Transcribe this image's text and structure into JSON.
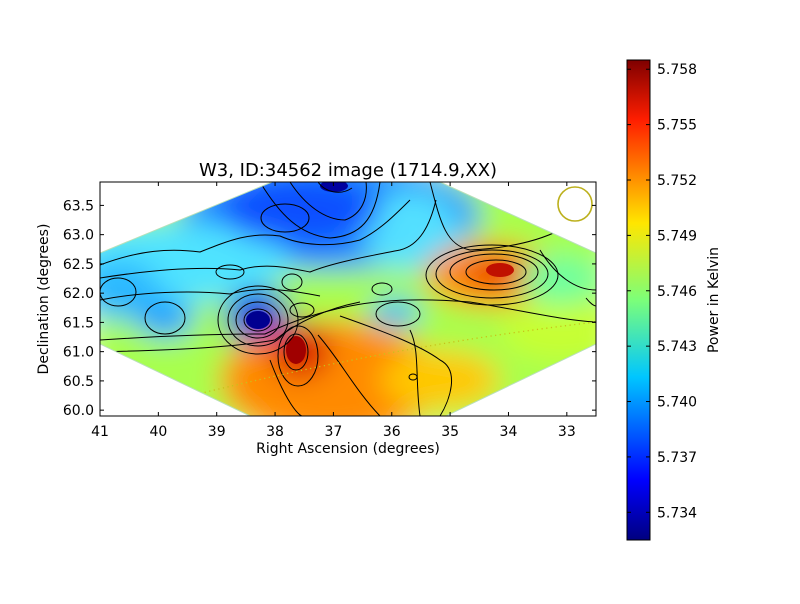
{
  "chart_data": [
    {
      "type": "heatmap",
      "title": "W3, ID:34562 image (1714.9,XX)",
      "xlabel": "Right Ascension (degrees)",
      "ylabel": "Declination (degrees)",
      "x_reversed": true,
      "xlim": [
        41.0,
        32.5
      ],
      "ylim": [
        59.9,
        63.9
      ],
      "x_ticks": [
        "41",
        "40",
        "39",
        "38",
        "37",
        "36",
        "35",
        "34",
        "33"
      ],
      "y_ticks": [
        "60.0",
        "60.5",
        "61.0",
        "61.5",
        "62.0",
        "62.5",
        "63.0",
        "63.5"
      ],
      "colormap": "jet",
      "contours": true,
      "features": [
        {
          "kind": "minimum",
          "ra": 38.3,
          "dec": 61.45,
          "value": 5.733
        },
        {
          "kind": "minimum",
          "ra": 37.9,
          "dec": 63.3,
          "value": 5.737
        },
        {
          "kind": "minimum",
          "ra": 37.0,
          "dec": 63.8,
          "value": 5.735
        },
        {
          "kind": "minimum",
          "ra": 39.9,
          "dec": 61.5,
          "value": 5.74
        },
        {
          "kind": "minimum",
          "ra": 35.9,
          "dec": 61.6,
          "value": 5.741
        },
        {
          "kind": "maximum",
          "ra": 37.7,
          "dec": 60.95,
          "value": 5.757
        },
        {
          "kind": "maximum",
          "ra": 34.2,
          "dec": 62.35,
          "value": 5.755
        }
      ]
    },
    {
      "type": "colorbar",
      "label": "Power in Kelvin",
      "ticks": [
        "5.734",
        "5.737",
        "5.740",
        "5.743",
        "5.746",
        "5.749",
        "5.752",
        "5.755",
        "5.758"
      ],
      "tick_values": [
        5.734,
        5.737,
        5.74,
        5.743,
        5.746,
        5.749,
        5.752,
        5.755,
        5.758
      ],
      "range": [
        5.7325,
        5.7585
      ],
      "colormap": "jet"
    }
  ],
  "colors": {
    "beam_circle": "#bcb01c",
    "ecliptic_dots": "#c7c21a",
    "contour": "#000000",
    "frame": "#000000"
  }
}
